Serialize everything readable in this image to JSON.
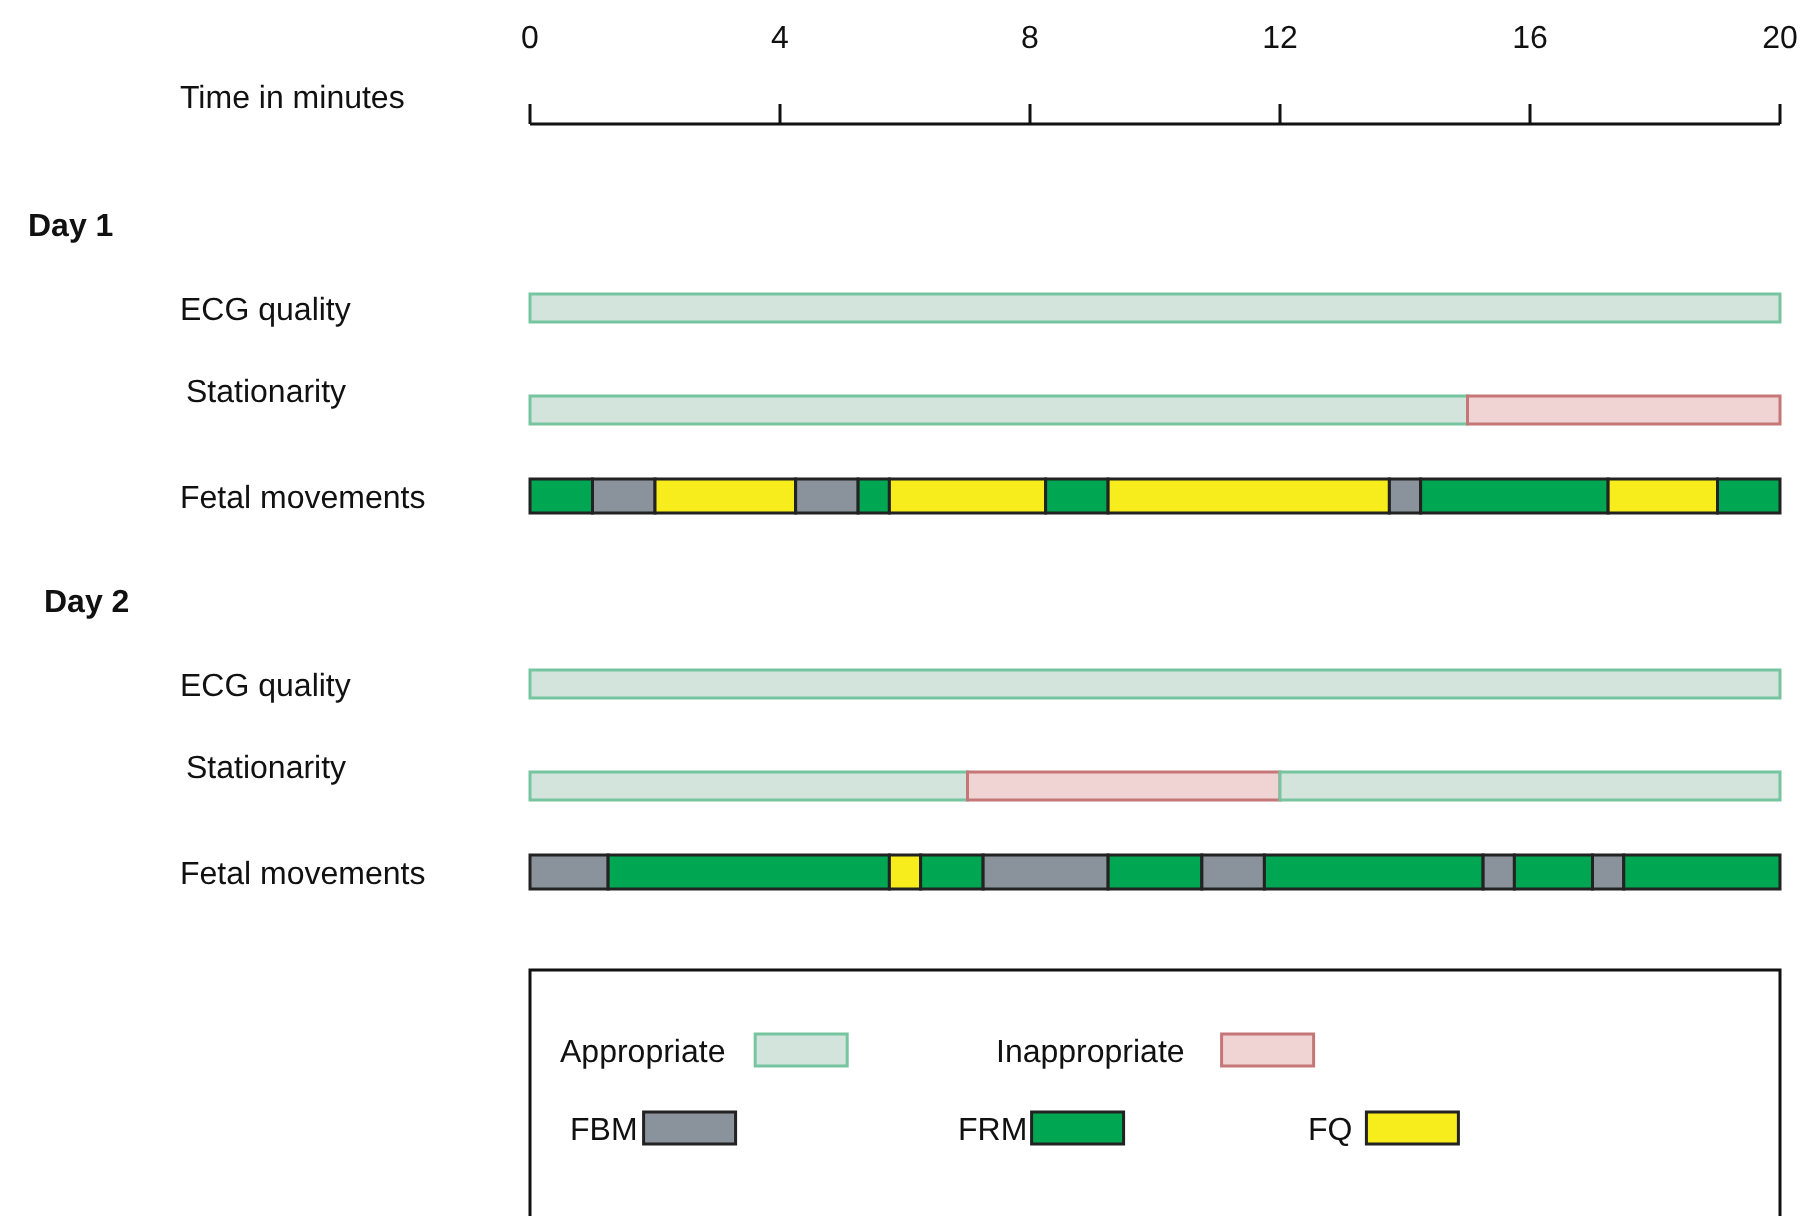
{
  "chart_data": [
    {
      "type": "bar",
      "orientation": "horizontal",
      "stacked": true,
      "title": "Day 1",
      "xlabel": "Time in minutes",
      "categories": [
        "ECG quality",
        "Stationarity",
        "Fetal movements"
      ],
      "xlim": [
        0,
        20
      ],
      "xticks": [
        0,
        4,
        8,
        12,
        16,
        20
      ],
      "series": [
        {
          "color": "#d3e4dc",
          "values": [
            20,
            15,
            null
          ]
        },
        {
          "color": "#f0d3d3",
          "values": [
            null,
            5,
            null
          ]
        },
        {
          "color": "#00a651",
          "values": [
            null,
            null,
            1
          ]
        },
        {
          "color": "#8a939b",
          "values": [
            null,
            null,
            1
          ]
        },
        {
          "color": "#f7ec1c",
          "values": [
            null,
            null,
            2.25
          ]
        },
        {
          "color": "#8a939b",
          "values": [
            null,
            null,
            1
          ]
        },
        {
          "color": "#00a651",
          "values": [
            null,
            null,
            0.5
          ]
        },
        {
          "color": "#f7ec1c",
          "values": [
            null,
            null,
            2.5
          ]
        },
        {
          "color": "#00a651",
          "values": [
            null,
            null,
            1
          ]
        },
        {
          "color": "#f7ec1c",
          "values": [
            null,
            null,
            4.5
          ]
        },
        {
          "color": "#8a939b",
          "values": [
            null,
            null,
            0.5
          ]
        },
        {
          "color": "#00a651",
          "values": [
            null,
            null,
            3
          ]
        },
        {
          "color": "#f7ec1c",
          "values": [
            null,
            null,
            1.75
          ]
        },
        {
          "color": "#00a651",
          "values": [
            null,
            null,
            1
          ]
        }
      ]
    },
    {
      "type": "bar",
      "orientation": "horizontal",
      "stacked": true,
      "title": "Day 2",
      "categories": [
        "ECG quality",
        "Stationarity",
        "Fetal movements"
      ],
      "xlim": [
        0,
        20
      ],
      "tick_labels": "y",
      "legend": "bottom",
      "series": [
        {
          "name": "Appropriate",
          "color": "#d3e4dc",
          "values": [
            20,
            7,
            null
          ]
        },
        {
          "name": "Inappropriate",
          "color": "#f0d3d3",
          "values": [
            null,
            5,
            null
          ]
        },
        {
          "color": "#d3e4dc",
          "values": [
            null,
            8,
            null
          ]
        },
        {
          "name": "FBM",
          "color": "#8a939b",
          "values": [
            null,
            null,
            1.25
          ]
        },
        {
          "name": "FRM",
          "color": "#00a651",
          "values": [
            null,
            null,
            4.5
          ]
        },
        {
          "name": "FQ",
          "color": "#f7ec1c",
          "values": [
            null,
            null,
            0.5
          ]
        },
        {
          "color": "#00a651",
          "values": [
            null,
            null,
            1
          ]
        },
        {
          "color": "#8a939b",
          "values": [
            null,
            null,
            2
          ]
        },
        {
          "color": "#00a651",
          "values": [
            null,
            null,
            1.5
          ]
        },
        {
          "color": "#8a939b",
          "values": [
            null,
            null,
            1
          ]
        },
        {
          "color": "#00a651",
          "values": [
            null,
            null,
            3.5
          ]
        },
        {
          "color": "#8a939b",
          "values": [
            null,
            null,
            0.5
          ]
        },
        {
          "color": "#00a651",
          "values": [
            null,
            null,
            1.25
          ]
        },
        {
          "color": "#8a939b",
          "values": [
            null,
            null,
            0.5
          ]
        },
        {
          "color": "#00a651",
          "values": [
            null,
            null,
            2.5
          ]
        }
      ]
    }
  ]
}
